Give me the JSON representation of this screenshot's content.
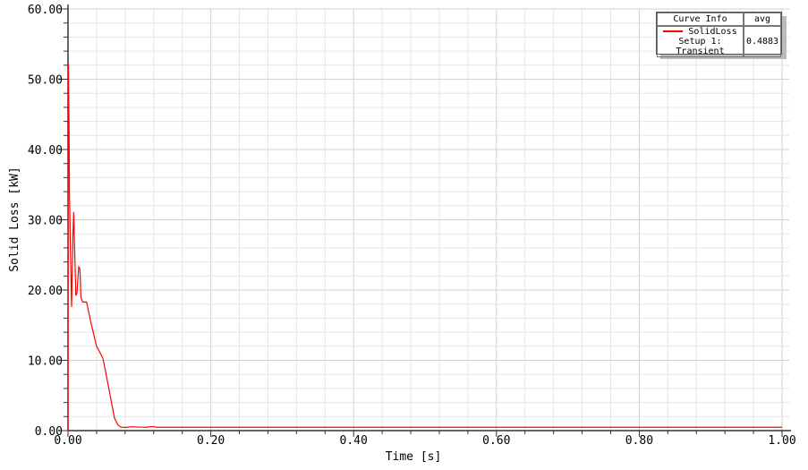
{
  "chart_data": {
    "type": "line",
    "xlabel": "Time [s]",
    "ylabel": "Solid Loss [kW]",
    "xlim": [
      0,
      1
    ],
    "ylim": [
      0,
      60
    ],
    "xticks": [
      "0.00",
      "0.20",
      "0.40",
      "0.60",
      "0.80",
      "1.00"
    ],
    "yticks": [
      "0.00",
      "10.00",
      "20.00",
      "30.00",
      "40.00",
      "50.00",
      "60.00"
    ],
    "grid": true,
    "legend_placement": "top-right",
    "series": [
      {
        "name": "SolidLoss",
        "color": "#ff0000",
        "x": [
          0,
          0.0003,
          0.0006,
          0.001,
          0.0015,
          0.002,
          0.003,
          0.005,
          0.007,
          0.008,
          0.009,
          0.011,
          0.0125,
          0.015,
          0.0167,
          0.018,
          0.0205,
          0.026,
          0.032,
          0.04,
          0.0489,
          0.057,
          0.065,
          0.07,
          0.074,
          0.08,
          0.0885,
          0.1,
          0.11,
          0.118,
          0.125,
          0.2,
          0.4,
          0.6,
          0.8,
          1.0
        ],
        "y": [
          0,
          50.0,
          52.2,
          47.0,
          43.0,
          34.1,
          28.0,
          17.6,
          28.2,
          31.1,
          27.0,
          19.2,
          19.5,
          23.3,
          23.0,
          19.0,
          18.3,
          18.3,
          15.4,
          12.0,
          10.3,
          6.1,
          1.8,
          0.8,
          0.5,
          0.45,
          0.55,
          0.5,
          0.48,
          0.58,
          0.48,
          0.48,
          0.48,
          0.48,
          0.48,
          0.48
        ]
      }
    ]
  },
  "legend": {
    "header_curve": "Curve Info",
    "header_stat": "avg",
    "curve_name": "SolidLoss",
    "curve_setup": "Setup 1: Transient",
    "avg_value": "0.4883"
  }
}
